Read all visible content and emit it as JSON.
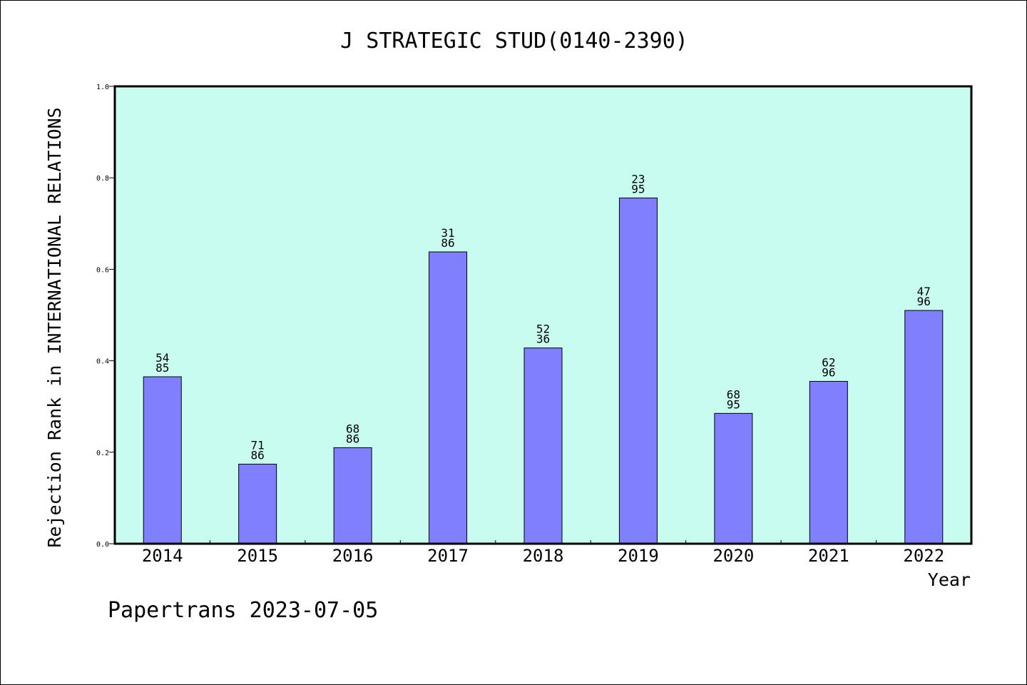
{
  "chart_data": {
    "type": "bar",
    "title": "J STRATEGIC STUD(0140-2390)",
    "xlabel": "Year",
    "ylabel": "Rejection Rank in INTERNATIONAL RELATIONS",
    "categories": [
      "2014",
      "2015",
      "2016",
      "2017",
      "2018",
      "2019",
      "2020",
      "2021",
      "2022"
    ],
    "values": [
      0.365,
      0.174,
      0.21,
      0.638,
      0.428,
      0.756,
      0.285,
      0.355,
      0.51
    ],
    "data_labels": [
      [
        "54",
        "85"
      ],
      [
        "71",
        "86"
      ],
      [
        "68",
        "86"
      ],
      [
        "31",
        "86"
      ],
      [
        "52",
        "36"
      ],
      [
        "23",
        "95"
      ],
      [
        "68",
        "95"
      ],
      [
        "62",
        "96"
      ],
      [
        "47",
        "96"
      ]
    ],
    "ylim": [
      0,
      1.0
    ],
    "yticks": [
      "0.0",
      "0.2",
      "0.4",
      "0.6",
      "0.8",
      "1.0"
    ],
    "ytick_values": [
      0,
      0.2,
      0.4,
      0.6,
      0.8,
      1.0
    ],
    "grid": false,
    "colors": {
      "plot_background": "#c8fcf0",
      "bar_fill": "#8080ff",
      "bar_stroke": "#000000"
    }
  },
  "footer": {
    "text": "Papertrans 2023-07-05"
  }
}
